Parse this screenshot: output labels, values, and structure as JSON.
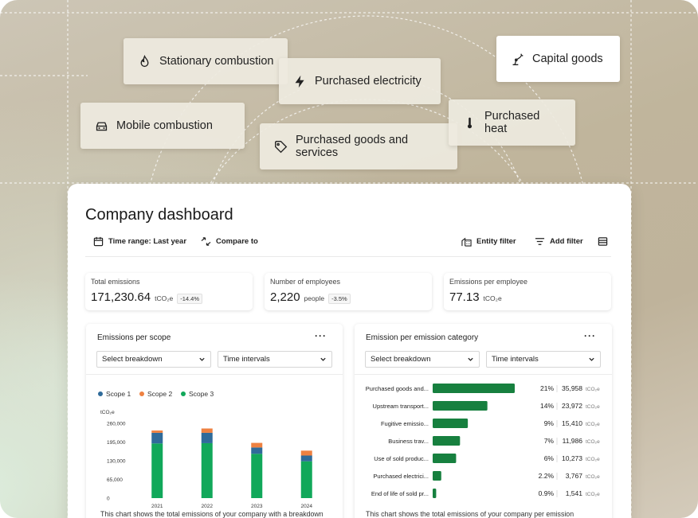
{
  "categories_chips": [
    {
      "label": "Stationary combustion",
      "icon": "flame-icon"
    },
    {
      "label": "Purchased electricity",
      "icon": "lightning-icon"
    },
    {
      "label": "Capital goods",
      "icon": "robot-arm-icon"
    },
    {
      "label": "Mobile combustion",
      "icon": "car-icon"
    },
    {
      "label": "Purchased goods and services",
      "icon": "tag-icon"
    },
    {
      "label": "Purchased heat",
      "icon": "thermometer-icon"
    }
  ],
  "dashboard": {
    "title": "Company dashboard",
    "toolbar": {
      "time_range": "Time range: Last year",
      "compare": "Compare to",
      "entity_filter": "Entity filter",
      "add_filter": "Add filter"
    },
    "kpis": [
      {
        "label": "Total emissions",
        "value": "171,230.64",
        "unit": "tCO₂e",
        "change": "-14.4%"
      },
      {
        "label": "Number of employees",
        "value": "2,220",
        "unit": "people",
        "change": "-3.5%"
      },
      {
        "label": "Emissions per employee",
        "value": "77.13",
        "unit": "tCO₂e",
        "change": ""
      }
    ],
    "scope_card": {
      "title": "Emissions per scope",
      "more": "···",
      "select_breakdown": "Select breakdown",
      "time_intervals": "Time intervals",
      "footnote": "This chart shows the total emissions of your company with a breakdown"
    },
    "category_card": {
      "title": "Emission per emission category",
      "more": "···",
      "select_breakdown": "Select breakdown",
      "time_intervals": "Time intervals",
      "footnote": "This chart shows the total emissions of your company per emission"
    }
  },
  "colors": {
    "scope1": "#2f6b9a",
    "scope2": "#ee8141",
    "scope3": "#11a85a",
    "category_bar": "#17803f"
  },
  "chart_data": [
    {
      "type": "bar",
      "stacked": true,
      "title": "Emissions per scope",
      "ylabel": "tCO₂e",
      "ylim": [
        0,
        260000
      ],
      "yticks": [
        "0",
        "65,000",
        "130,000",
        "195,000",
        "260,000"
      ],
      "yticks_values": [
        0,
        65000,
        130000,
        195000,
        260000
      ],
      "categories": [
        "2021",
        "2022",
        "2023",
        "2024"
      ],
      "series": [
        {
          "name": "Scope 1",
          "values": [
            37000,
            36000,
            22000,
            20000
          ]
        },
        {
          "name": "Scope 2",
          "values": [
            8000,
            15000,
            16000,
            17000
          ]
        },
        {
          "name": "Scope 3",
          "values": [
            190000,
            191000,
            154000,
            128000
          ]
        }
      ],
      "legend": "top-left"
    },
    {
      "type": "bar",
      "orientation": "horizontal",
      "title": "Emission per emission category",
      "categories": [
        "Purchased goods and...",
        "Upstream transport...",
        "Fugitive emissio...",
        "Business trav...",
        "Use of sold produc...",
        "Purchased electrici...",
        "End of life of sold pr..."
      ],
      "percent_labels": [
        "21%",
        "14%",
        "9%",
        "7%",
        "6%",
        "2.2%",
        "0.9%"
      ],
      "value_labels": [
        "35,958",
        "23,972",
        "15,410",
        "11,986",
        "10,273",
        "3,767",
        "1,541"
      ],
      "values": [
        35958,
        23972,
        15410,
        11986,
        10273,
        3767,
        1541
      ],
      "unit": "tCO₂e"
    }
  ]
}
